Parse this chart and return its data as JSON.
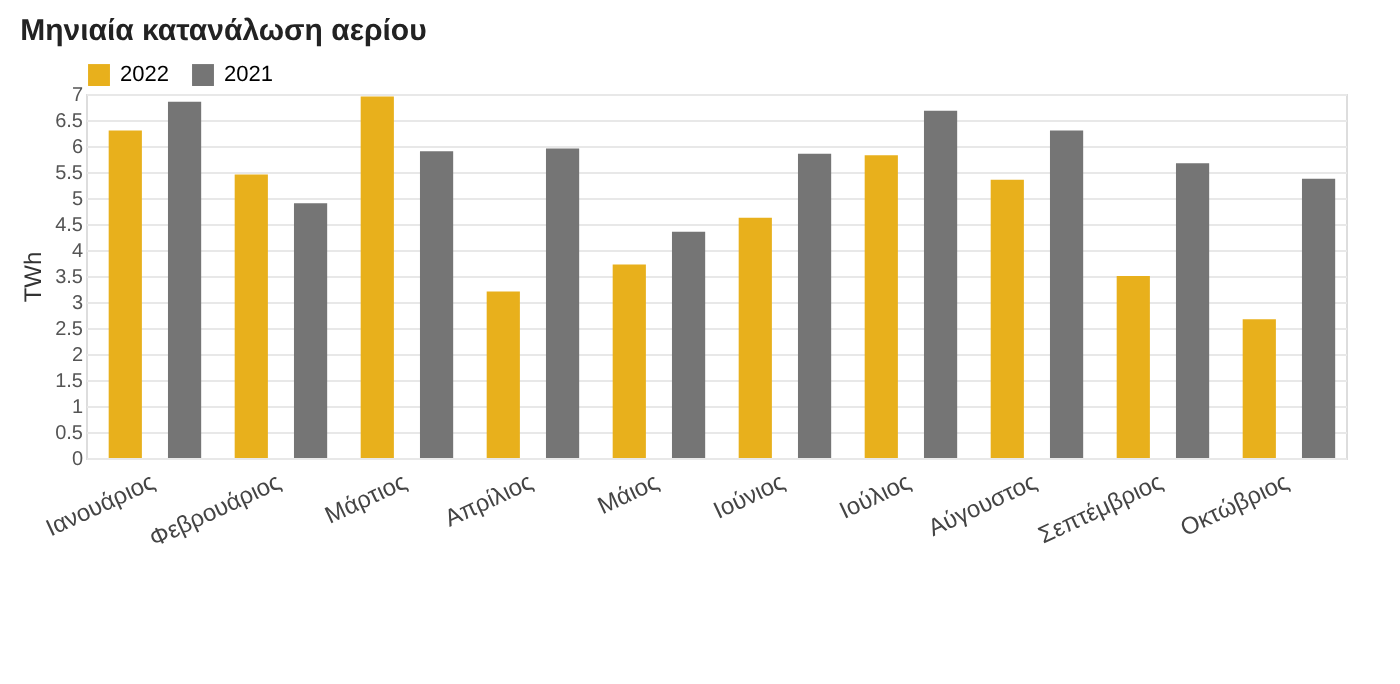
{
  "chart_data": {
    "type": "bar",
    "title": "Μηνιαία κατανάλωση αερίου",
    "ylabel": "TWh",
    "categories": [
      "Ιανουάριος",
      "Φεβρουάριος",
      "Μάρτιος",
      "Απρίλιος",
      "Μάιος",
      "Ιούνιος",
      "Ιούλιος",
      "Αύγουστος",
      "Σεπτέμβριος",
      "Οκτώβριος"
    ],
    "series": [
      {
        "name": "2022",
        "color": "#e8b01c",
        "values": [
          6.3,
          5.45,
          6.95,
          3.2,
          3.72,
          4.62,
          5.82,
          5.35,
          3.5,
          2.67
        ]
      },
      {
        "name": "2021",
        "color": "#757575",
        "values": [
          6.85,
          4.9,
          5.9,
          5.95,
          4.35,
          5.85,
          6.68,
          6.3,
          5.67,
          5.37
        ]
      }
    ],
    "ylim": [
      0,
      7
    ],
    "yticks": [
      0,
      0.5,
      1,
      1.5,
      2,
      2.5,
      3,
      3.5,
      4,
      4.5,
      5,
      5.5,
      6,
      6.5,
      7
    ],
    "grid": "y",
    "legend": "top left"
  }
}
